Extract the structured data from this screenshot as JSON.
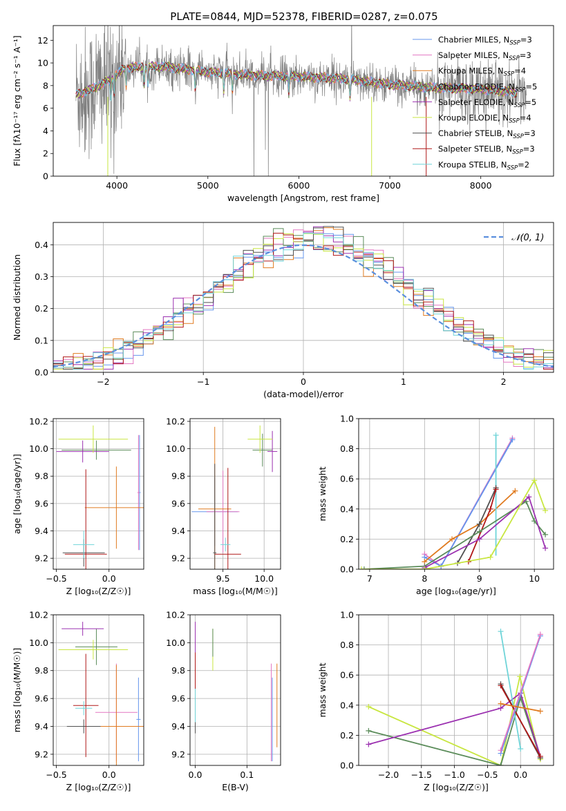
{
  "title": "PLATE=0844, MJD=52378, FIBERID=0287, z=0.075",
  "colors": {
    "chabrier_miles": "#6495ed",
    "salpeter_miles": "#e377c2",
    "kroupa_miles": "#e07b20",
    "chabrier_elodie": "#5b8c5a",
    "salpeter_elodie": "#9b30b0",
    "kroupa_elodie": "#c8e640",
    "chabrier_stelib": "#505050",
    "salpeter_stelib": "#b01818",
    "kroupa_stelib": "#6fd4d8",
    "grid": "#b0b0b0",
    "data": "#808080"
  },
  "chart_data": [
    {
      "type": "line",
      "panel": "spectrum",
      "xlabel": "wavelength [Angstrom, rest frame]",
      "ylabel": "Flux [fλ10⁻¹⁷ erg cm⁻² s⁻¹ A⁻¹]",
      "xlim": [
        3300,
        8800
      ],
      "ylim": [
        0,
        13.3
      ],
      "xticks": [
        4000,
        5000,
        6000,
        7000,
        8000
      ],
      "yticks": [
        0,
        2,
        4,
        6,
        8,
        10,
        12
      ],
      "legend": "top-right",
      "continuum": {
        "x": [
          3550,
          3700,
          3900,
          4100,
          4500,
          5000,
          5500,
          6000,
          6500,
          7000,
          7500,
          8000,
          8500
        ],
        "y": [
          7.2,
          7.6,
          8.4,
          9.6,
          9.7,
          9.2,
          8.9,
          8.8,
          8.6,
          8.1,
          7.8,
          7.7,
          7.3
        ]
      },
      "series": [
        {
          "name": "Chabrier MILES, N",
          "sub": "SSP",
          "suffix": "=3",
          "color_key": "chabrier_miles"
        },
        {
          "name": "Salpeter MILES, N",
          "sub": "SSP",
          "suffix": "=3",
          "color_key": "salpeter_miles"
        },
        {
          "name": "Kroupa MILES, N",
          "sub": "SSP",
          "suffix": "=4",
          "color_key": "kroupa_miles"
        },
        {
          "name": "Chabrier ELODIE, N",
          "sub": "SSP",
          "suffix": "=5",
          "color_key": "chabrier_elodie"
        },
        {
          "name": "Salpeter ELODIE, N",
          "sub": "SSP",
          "suffix": "=5",
          "color_key": "salpeter_elodie"
        },
        {
          "name": "Kroupa ELODIE, N",
          "sub": "SSP",
          "suffix": "=4",
          "color_key": "kroupa_elodie"
        },
        {
          "name": "Chabrier STELIB, N",
          "sub": "SSP",
          "suffix": "=3",
          "color_key": "chabrier_stelib"
        },
        {
          "name": "Salpeter STELIB, N",
          "sub": "SSP",
          "suffix": "=3",
          "color_key": "salpeter_stelib"
        },
        {
          "name": "Kroupa STELIB, N",
          "sub": "SSP",
          "suffix": "=2",
          "color_key": "kroupa_stelib"
        }
      ]
    },
    {
      "type": "line",
      "panel": "residuals",
      "xlabel": "(data-model)/error",
      "ylabel": "Normed distribution",
      "xlim": [
        -2.5,
        2.5
      ],
      "ylim": [
        0,
        0.47
      ],
      "xticks": [
        -2,
        -1,
        0,
        1,
        2
      ],
      "yticks": [
        0.0,
        0.1,
        0.2,
        0.3,
        0.4
      ],
      "legend": "top-right",
      "normal_label": "𝒩(0, 1)",
      "histogram_bin_width": 0.1
    },
    {
      "type": "scatter",
      "panel": "age_vs_Z",
      "xlabel": "Z [log₁₀(Z/Z☉)]",
      "ylabel": "age  [log₁₀(age/yr)]",
      "xlim": [
        -0.53,
        0.33
      ],
      "ylim": [
        9.12,
        10.22
      ],
      "xticks": [
        -0.5,
        0.0
      ],
      "yticks": [
        9.2,
        9.4,
        9.6,
        9.8,
        10.0,
        10.2
      ],
      "points": [
        {
          "x": 0.29,
          "y": 9.68,
          "xerr": 0.01,
          "yerr": 0.42,
          "color_key": "chabrier_miles"
        },
        {
          "x": 0.28,
          "y": 9.68,
          "xerr": 0.01,
          "yerr": 0.42,
          "color_key": "salpeter_miles"
        },
        {
          "x": 0.07,
          "y": 9.57,
          "xerr": 0.3,
          "yerr": 0.3,
          "color_key": "kroupa_miles"
        },
        {
          "x": -0.12,
          "y": 9.99,
          "xerr": 0.33,
          "yerr": 0.07,
          "color_key": "chabrier_elodie"
        },
        {
          "x": -0.25,
          "y": 9.98,
          "xerr": 0.25,
          "yerr": 0.08,
          "color_key": "salpeter_elodie"
        },
        {
          "x": -0.15,
          "y": 10.07,
          "xerr": 0.33,
          "yerr": 0.1,
          "color_key": "kroupa_elodie"
        },
        {
          "x": -0.24,
          "y": 9.24,
          "xerr": 0.2,
          "yerr": 0.1,
          "color_key": "chabrier_stelib"
        },
        {
          "x": -0.22,
          "y": 9.23,
          "xerr": 0.2,
          "yerr": 0.62,
          "color_key": "salpeter_stelib"
        },
        {
          "x": -0.24,
          "y": 9.3,
          "xerr": 0.1,
          "yerr": 0.1,
          "color_key": "kroupa_stelib"
        }
      ]
    },
    {
      "type": "scatter",
      "panel": "age_vs_mass",
      "xlabel": "mass [log₁₀(M/M☉)]",
      "ylabel": "",
      "xlim": [
        9.1,
        10.2
      ],
      "ylim": [
        9.12,
        10.22
      ],
      "xticks": [
        9.5,
        10.0
      ],
      "yticks": [
        9.2,
        9.4,
        9.6,
        9.8,
        10.0,
        10.2
      ],
      "points": [
        {
          "x": 9.4,
          "y": 9.54,
          "xerr": 0.28,
          "yerr": 0.25,
          "color_key": "chabrier_miles"
        },
        {
          "x": 9.5,
          "y": 9.54,
          "xerr": 0.2,
          "yerr": 0.3,
          "color_key": "salpeter_miles"
        },
        {
          "x": 9.4,
          "y": 9.56,
          "xerr": 0.2,
          "yerr": 0.6,
          "color_key": "kroupa_miles"
        },
        {
          "x": 9.98,
          "y": 9.99,
          "xerr": 0.12,
          "yerr": 0.12,
          "color_key": "chabrier_elodie"
        },
        {
          "x": 10.1,
          "y": 9.98,
          "xerr": 0.06,
          "yerr": 0.15,
          "color_key": "salpeter_elodie"
        },
        {
          "x": 9.95,
          "y": 10.07,
          "xerr": 0.15,
          "yerr": 0.1,
          "color_key": "kroupa_elodie"
        },
        {
          "x": 9.4,
          "y": 9.24,
          "xerr": 0.02,
          "yerr": 0.65,
          "color_key": "chabrier_stelib"
        },
        {
          "x": 9.56,
          "y": 9.23,
          "xerr": 0.16,
          "yerr": 0.63,
          "color_key": "salpeter_stelib"
        },
        {
          "x": 9.53,
          "y": 9.3,
          "xerr": 0.06,
          "yerr": 0.05,
          "color_key": "kroupa_stelib"
        }
      ]
    },
    {
      "type": "line",
      "panel": "weight_vs_age",
      "xlabel": "age  [log₁₀(age/yr)]",
      "ylabel": "mass weight",
      "xlim": [
        6.8,
        10.35
      ],
      "ylim": [
        0,
        1.0
      ],
      "xticks": [
        7,
        8,
        9,
        10
      ],
      "yticks": [
        0.0,
        0.2,
        0.4,
        0.6,
        0.8,
        1.0
      ],
      "series": [
        {
          "color_key": "salpeter_miles",
          "x": [
            8.0,
            8.3,
            9.6
          ],
          "y": [
            0.1,
            0.02,
            0.87
          ]
        },
        {
          "color_key": "chabrier_miles",
          "x": [
            8.0,
            8.3,
            9.6
          ],
          "y": [
            0.08,
            0.02,
            0.86
          ]
        },
        {
          "color_key": "kroupa_miles",
          "x": [
            8.0,
            8.5,
            9.0,
            9.65
          ],
          "y": [
            0.05,
            0.2,
            0.3,
            0.52
          ]
        },
        {
          "color_key": "kroupa_stelib",
          "x": [
            9.3
          ],
          "y": [
            0.89
          ],
          "yerr": 0.4
        },
        {
          "color_key": "chabrier_stelib",
          "x": [
            8.6,
            9.0,
            9.3
          ],
          "y": [
            0.04,
            0.3,
            0.54
          ]
        },
        {
          "color_key": "salpeter_stelib",
          "x": [
            8.8,
            9.2,
            9.3
          ],
          "y": [
            0.05,
            0.4,
            0.53
          ]
        },
        {
          "color_key": "chabrier_elodie",
          "x": [
            6.9,
            8.0,
            9.0,
            9.85,
            10.0,
            10.2
          ],
          "y": [
            0.0,
            0.02,
            0.25,
            0.45,
            0.32,
            0.23
          ]
        },
        {
          "color_key": "salpeter_elodie",
          "x": [
            8.0,
            9.0,
            9.9,
            10.2
          ],
          "y": [
            0.01,
            0.2,
            0.48,
            0.14
          ]
        },
        {
          "color_key": "kroupa_elodie",
          "x": [
            6.85,
            8.0,
            9.2,
            10.0,
            10.2
          ],
          "y": [
            0.0,
            0.0,
            0.08,
            0.59,
            0.39
          ]
        }
      ]
    },
    {
      "type": "scatter",
      "panel": "mass_vs_Z",
      "xlabel": "Z [log₁₀(Z/Z☉)]",
      "ylabel": "mass [log₁₀(M/M☉)]",
      "xlim": [
        -0.53,
        0.33
      ],
      "ylim": [
        9.12,
        10.2
      ],
      "xticks": [
        -0.5,
        0.0
      ],
      "yticks": [
        9.2,
        9.4,
        9.6,
        9.8,
        10.0,
        10.2
      ],
      "points": [
        {
          "x": 0.28,
          "y": 9.45,
          "xerr": 0.02,
          "yerr": 0.3,
          "color_key": "chabrier_miles"
        },
        {
          "x": 0.07,
          "y": 9.5,
          "xerr": 0.2,
          "yerr": 0.35,
          "color_key": "salpeter_miles"
        },
        {
          "x": 0.07,
          "y": 9.4,
          "xerr": 0.3,
          "yerr": 0.44,
          "color_key": "kroupa_miles"
        },
        {
          "x": -0.12,
          "y": 9.97,
          "xerr": 0.2,
          "yerr": 0.13,
          "color_key": "chabrier_elodie"
        },
        {
          "x": -0.25,
          "y": 10.1,
          "xerr": 0.2,
          "yerr": 0.05,
          "color_key": "salpeter_elodie"
        },
        {
          "x": -0.15,
          "y": 9.95,
          "xerr": 0.33,
          "yerr": 0.07,
          "color_key": "kroupa_elodie"
        },
        {
          "x": -0.24,
          "y": 9.4,
          "xerr": 0.16,
          "yerr": 0.05,
          "color_key": "chabrier_stelib"
        },
        {
          "x": -0.22,
          "y": 9.55,
          "xerr": 0.12,
          "yerr": 0.37,
          "color_key": "salpeter_stelib"
        },
        {
          "x": -0.24,
          "y": 9.53,
          "xerr": 0.08,
          "yerr": 0.05,
          "color_key": "kroupa_stelib"
        }
      ]
    },
    {
      "type": "scatter",
      "panel": "mass_vs_ebv",
      "xlabel": "E(B-V)",
      "ylabel": "",
      "xlim": [
        -0.01,
        0.165
      ],
      "ylim": [
        9.12,
        10.2
      ],
      "xticks": [
        0.0,
        0.1
      ],
      "yticks": [
        9.2,
        9.4,
        9.6,
        9.8,
        10.0,
        10.2
      ],
      "points": [
        {
          "x": 0.147,
          "y": 9.5,
          "yerr": 0.35,
          "color_key": "salpeter_miles"
        },
        {
          "x": 0.149,
          "y": 9.45,
          "yerr": 0.3,
          "color_key": "chabrier_miles"
        },
        {
          "x": 0.158,
          "y": 9.55,
          "yerr": 0.3,
          "color_key": "kroupa_miles"
        },
        {
          "x": 0.0,
          "y": 10.0,
          "yerr": 0.15,
          "color_key": "salpeter_elodie"
        },
        {
          "x": 0.034,
          "y": 9.95,
          "yerr": 0.15,
          "color_key": "kroupa_elodie"
        },
        {
          "x": 0.034,
          "y": 10.0,
          "yerr": 0.1,
          "color_key": "chabrier_elodie"
        },
        {
          "x": 0.0,
          "y": 9.6,
          "yerr": 0.25,
          "color_key": "chabrier_stelib"
        },
        {
          "x": 0.0,
          "y": 9.7,
          "yerr": 0.23,
          "color_key": "salpeter_stelib"
        },
        {
          "x": 0.0,
          "y": 9.55,
          "yerr": 0.12,
          "color_key": "kroupa_stelib"
        }
      ]
    },
    {
      "type": "line",
      "panel": "weight_vs_Z",
      "xlabel": "Z [log₁₀(Z/Z☉)]",
      "ylabel": "mass weight",
      "xlim": [
        -2.45,
        0.5
      ],
      "ylim": [
        0,
        1.0
      ],
      "xticks": [
        -2.0,
        -1.5,
        -1.0,
        -0.5,
        0.0
      ],
      "yticks": [
        0.0,
        0.2,
        0.4,
        0.6,
        0.8,
        1.0
      ],
      "series": [
        {
          "color_key": "kroupa_elodie",
          "x": [
            -2.3,
            -0.3,
            -0.01,
            0.3
          ],
          "y": [
            0.39,
            0.0,
            0.59,
            0.04
          ]
        },
        {
          "color_key": "chabrier_elodie",
          "x": [
            -2.3,
            -0.3,
            0.0,
            0.3
          ],
          "y": [
            0.23,
            0.0,
            0.45,
            0.05
          ]
        },
        {
          "color_key": "salpeter_elodie",
          "x": [
            -2.3,
            -0.3,
            0.0,
            0.3
          ],
          "y": [
            0.14,
            0.38,
            0.48,
            0.06
          ]
        },
        {
          "color_key": "kroupa_stelib",
          "x": [
            -0.3,
            0.0
          ],
          "y": [
            0.89,
            0.11
          ]
        },
        {
          "color_key": "chabrier_stelib",
          "x": [
            -0.3,
            0.3
          ],
          "y": [
            0.54,
            0.05
          ]
        },
        {
          "color_key": "salpeter_stelib",
          "x": [
            -0.3,
            0.3
          ],
          "y": [
            0.53,
            0.06
          ]
        },
        {
          "color_key": "chabrier_miles",
          "x": [
            -0.3,
            0.3
          ],
          "y": [
            0.08,
            0.86
          ]
        },
        {
          "color_key": "salpeter_miles",
          "x": [
            -0.3,
            0.3
          ],
          "y": [
            0.1,
            0.87
          ]
        },
        {
          "color_key": "kroupa_miles",
          "x": [
            -0.3,
            0.3
          ],
          "y": [
            0.41,
            0.36
          ]
        }
      ]
    }
  ]
}
